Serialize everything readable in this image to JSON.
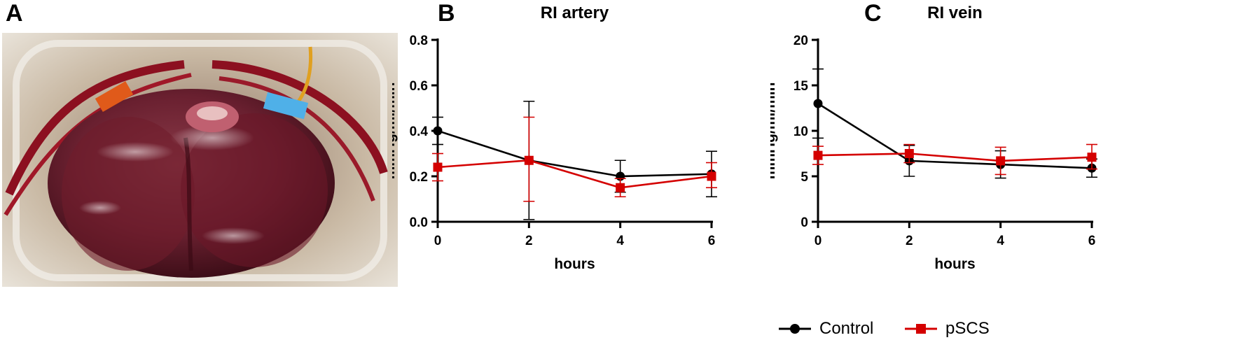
{
  "panels": {
    "a": "A",
    "b": "B",
    "c": "C"
  },
  "photo": {
    "icon": "organ-perfusion-photo-icon"
  },
  "colors": {
    "control": "#000000",
    "pscs": "#d40000"
  },
  "legend": [
    {
      "name": "Control",
      "marker": "circle",
      "color": "#000000"
    },
    {
      "name": "pSCS",
      "marker": "square",
      "color": "#d40000"
    }
  ],
  "chart_data": [
    {
      "type": "line",
      "title": "RI artery",
      "xlabel": "hours",
      "ylabel": "mmHg/ml/min",
      "x": [
        0,
        2,
        4,
        6
      ],
      "xlim": [
        0,
        6
      ],
      "ylim": [
        0,
        0.8
      ],
      "xticks": [
        0,
        2,
        4,
        6
      ],
      "yticks": [
        0.0,
        0.2,
        0.4,
        0.6,
        0.8
      ],
      "ytick_labels": [
        "0.0",
        "0.2",
        "0.4",
        "0.6",
        "0.8"
      ],
      "grid": false,
      "series": [
        {
          "name": "Control",
          "values": [
            0.4,
            0.27,
            0.2,
            0.21
          ],
          "err_low": [
            0.34,
            0.01,
            0.13,
            0.11
          ],
          "err_high": [
            0.46,
            0.53,
            0.27,
            0.31
          ]
        },
        {
          "name": "pSCS",
          "values": [
            0.24,
            0.27,
            0.15,
            0.2
          ],
          "err_low": [
            0.18,
            0.09,
            0.11,
            0.15
          ],
          "err_high": [
            0.3,
            0.46,
            0.19,
            0.26
          ]
        }
      ]
    },
    {
      "type": "line",
      "title": "RI vein",
      "xlabel": "hours",
      "ylabel": "mmHg/ml/min",
      "x": [
        0,
        2,
        4,
        6
      ],
      "xlim": [
        0,
        6
      ],
      "ylim": [
        0,
        20
      ],
      "xticks": [
        0,
        2,
        4,
        6
      ],
      "yticks": [
        0,
        5,
        10,
        15,
        20
      ],
      "ytick_labels": [
        "0",
        "5",
        "10",
        "15",
        "20"
      ],
      "grid": false,
      "series": [
        {
          "name": "Control",
          "values": [
            13.0,
            6.7,
            6.3,
            5.9
          ],
          "err_low": [
            9.2,
            5.0,
            4.8,
            4.9
          ],
          "err_high": [
            16.8,
            8.4,
            7.8,
            6.9
          ]
        },
        {
          "name": "pSCS",
          "values": [
            7.3,
            7.5,
            6.7,
            7.1
          ],
          "err_low": [
            6.3,
            6.5,
            5.2,
            5.8
          ],
          "err_high": [
            8.3,
            8.5,
            8.2,
            8.5
          ]
        }
      ]
    }
  ]
}
